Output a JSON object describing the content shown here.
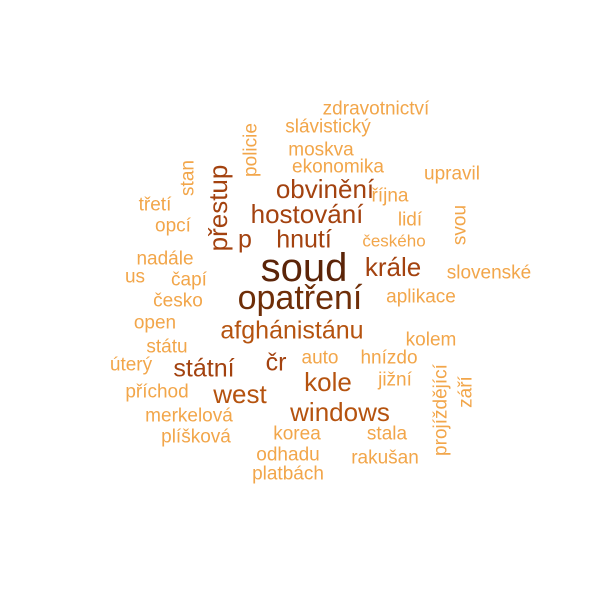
{
  "words": [
    {
      "text": "soud",
      "color": "#5b2408"
    },
    {
      "text": "opatření",
      "color": "#6e2e08"
    },
    {
      "text": "obvinění",
      "color": "#a3420f"
    },
    {
      "text": "hostování",
      "color": "#a3420f"
    },
    {
      "text": "přestup",
      "color": "#a3420f"
    },
    {
      "text": "hnutí",
      "color": "#a3420f"
    },
    {
      "text": "p",
      "color": "#a3420f"
    },
    {
      "text": "krále",
      "color": "#a3420f"
    },
    {
      "text": "afghánistánu",
      "color": "#b5530f"
    },
    {
      "text": "státní",
      "color": "#a3420f"
    },
    {
      "text": "čr",
      "color": "#a3420f"
    },
    {
      "text": "kole",
      "color": "#b5530f"
    },
    {
      "text": "west",
      "color": "#b5530f"
    },
    {
      "text": "windows",
      "color": "#b5530f"
    },
    {
      "text": "zdravotnictví",
      "color": "#f2a64a"
    },
    {
      "text": "slávistický",
      "color": "#f2a64a"
    },
    {
      "text": "moskva",
      "color": "#f2a64a"
    },
    {
      "text": "ekonomika",
      "color": "#f2a64a"
    },
    {
      "text": "upravil",
      "color": "#f2a64a"
    },
    {
      "text": "policie",
      "color": "#f2a64a"
    },
    {
      "text": "stan",
      "color": "#f2a64a"
    },
    {
      "text": "třetí",
      "color": "#f2a64a"
    },
    {
      "text": "opcí",
      "color": "#f2a64a"
    },
    {
      "text": "října",
      "color": "#f2a64a"
    },
    {
      "text": "lidí",
      "color": "#f2a64a"
    },
    {
      "text": "svou",
      "color": "#f2a64a"
    },
    {
      "text": "českého",
      "color": "#f2a64a"
    },
    {
      "text": "nadále",
      "color": "#f2a64a"
    },
    {
      "text": "us",
      "color": "#f2a64a"
    },
    {
      "text": "čapí",
      "color": "#f2a64a"
    },
    {
      "text": "slovenské",
      "color": "#f2a64a"
    },
    {
      "text": "česko",
      "color": "#f2a64a"
    },
    {
      "text": "aplikace",
      "color": "#f2a64a"
    },
    {
      "text": "open",
      "color": "#f2a64a"
    },
    {
      "text": "kolem",
      "color": "#f2a64a"
    },
    {
      "text": "státu",
      "color": "#f2a64a"
    },
    {
      "text": "úterý",
      "color": "#f2a64a"
    },
    {
      "text": "auto",
      "color": "#f2a64a"
    },
    {
      "text": "hnízdo",
      "color": "#f2a64a"
    },
    {
      "text": "projíždějící",
      "color": "#f2a64a"
    },
    {
      "text": "jižní",
      "color": "#f2a64a"
    },
    {
      "text": "září",
      "color": "#f2a64a"
    },
    {
      "text": "příchod",
      "color": "#f2a64a"
    },
    {
      "text": "merkelová",
      "color": "#f2a64a"
    },
    {
      "text": "plíšková",
      "color": "#f2a64a"
    },
    {
      "text": "korea",
      "color": "#f2a64a"
    },
    {
      "text": "stala",
      "color": "#f2a64a"
    },
    {
      "text": "odhadu",
      "color": "#f2a64a"
    },
    {
      "text": "rakušan",
      "color": "#f2a64a"
    },
    {
      "text": "platbách",
      "color": "#f2a64a"
    }
  ]
}
